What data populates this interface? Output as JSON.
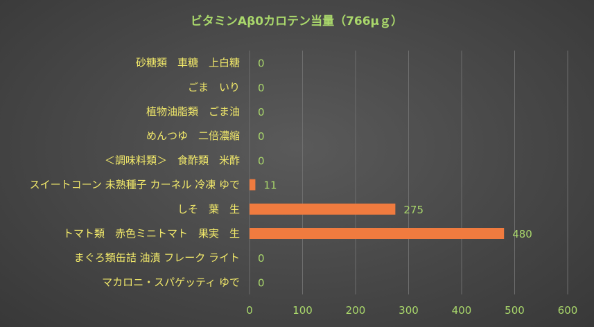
{
  "chart_data": {
    "type": "bar",
    "orientation": "horizontal",
    "title": "ビタミンAβ0カロテン当量（766μｇ）",
    "categories": [
      "砂糖類　車糖　上白糖",
      "ごま　いり",
      "植物油脂類　ごま油",
      "めんつゆ　二倍濃縮",
      "＜調味料類＞　食酢類　米酢",
      "スイートコーン 未熟種子 カーネル 冷凍 ゆで",
      "しそ　葉　生",
      "トマト類　赤色ミニトマト　果実　生",
      "まぐろ類缶詰 油漬 フレーク ライト",
      "マカロニ・スパゲッティ ゆで"
    ],
    "values": [
      0,
      0,
      0,
      0,
      0,
      11,
      275,
      480,
      0,
      0
    ],
    "xlim": [
      0,
      600
    ],
    "xticks": [
      0,
      100,
      200,
      300,
      400,
      500,
      600
    ],
    "grid": true,
    "legend": "none",
    "colors": {
      "bar": "#f07b3f",
      "category_text": "#f2e96a",
      "value_text": "#a9d76b",
      "tick_text": "#a9d76b",
      "title_text": "#a9d76b",
      "grid": "#6e6e6e"
    }
  }
}
